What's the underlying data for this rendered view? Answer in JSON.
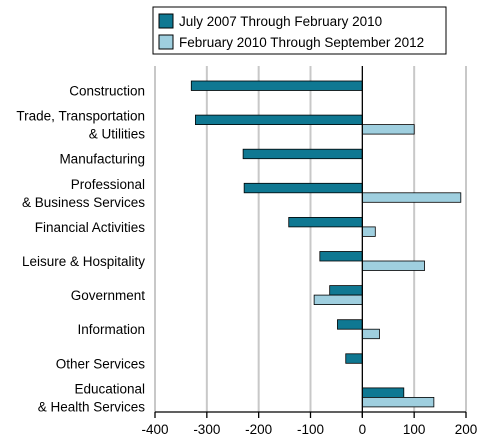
{
  "chart_data": {
    "type": "bar",
    "orientation": "horizontal",
    "categories": [
      [
        "Construction"
      ],
      [
        "Trade, Transportation",
        "& Utilities"
      ],
      [
        "Manufacturing"
      ],
      [
        "Professional",
        "& Business Services"
      ],
      [
        "Financial Activities"
      ],
      [
        "Leisure & Hospitality"
      ],
      [
        "Government"
      ],
      [
        "Information"
      ],
      [
        "Other Services"
      ],
      [
        "Educational",
        "& Health Services"
      ]
    ],
    "series": [
      {
        "name": "July 2007 Through February 2010",
        "color": "#0f7892",
        "values": [
          -330,
          -322,
          -230,
          -228,
          -142,
          -82,
          -63,
          -48,
          -32,
          80
        ]
      },
      {
        "name": "February 2010 Through September 2012",
        "color": "#9fcfdf",
        "values": [
          null,
          100,
          null,
          190,
          25,
          120,
          -93,
          33,
          null,
          138
        ]
      }
    ],
    "xlim": [
      -400,
      200
    ],
    "xticks": [
      -400,
      -300,
      -200,
      -100,
      0,
      100,
      200
    ],
    "grid": true,
    "legend_position": "top-right",
    "title": "",
    "xlabel": "",
    "ylabel": ""
  }
}
